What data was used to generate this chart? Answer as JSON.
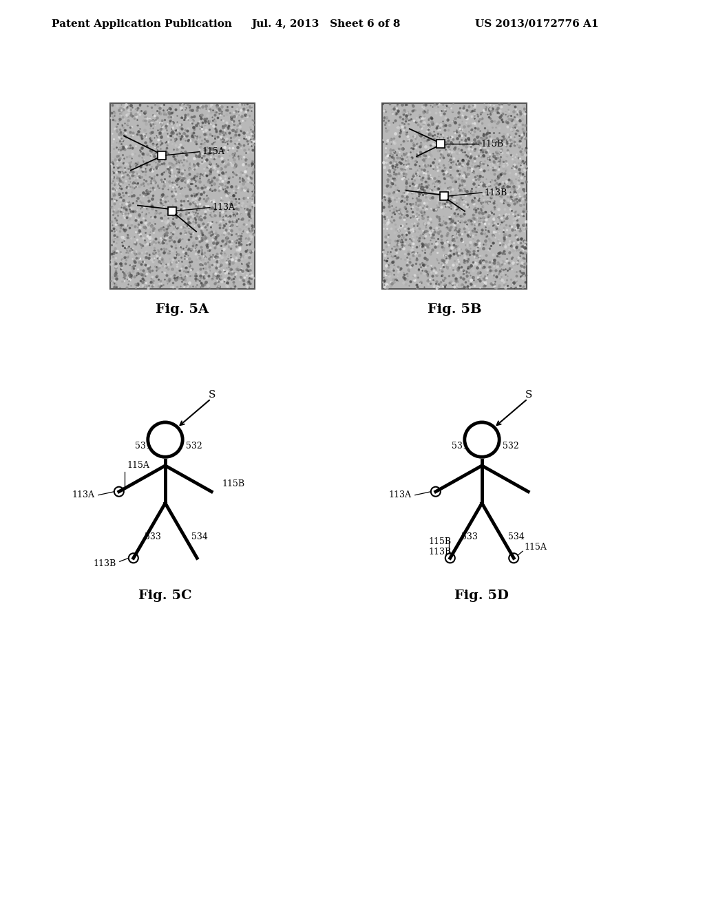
{
  "bg_color": "#ffffff",
  "header_left": "Patent Application Publication",
  "header_mid": "Jul. 4, 2013   Sheet 6 of 8",
  "header_right": "US 2013/0172776 A1",
  "label_fontsize": 9,
  "figlabel_fontsize": 14,
  "header_fontsize": 11
}
